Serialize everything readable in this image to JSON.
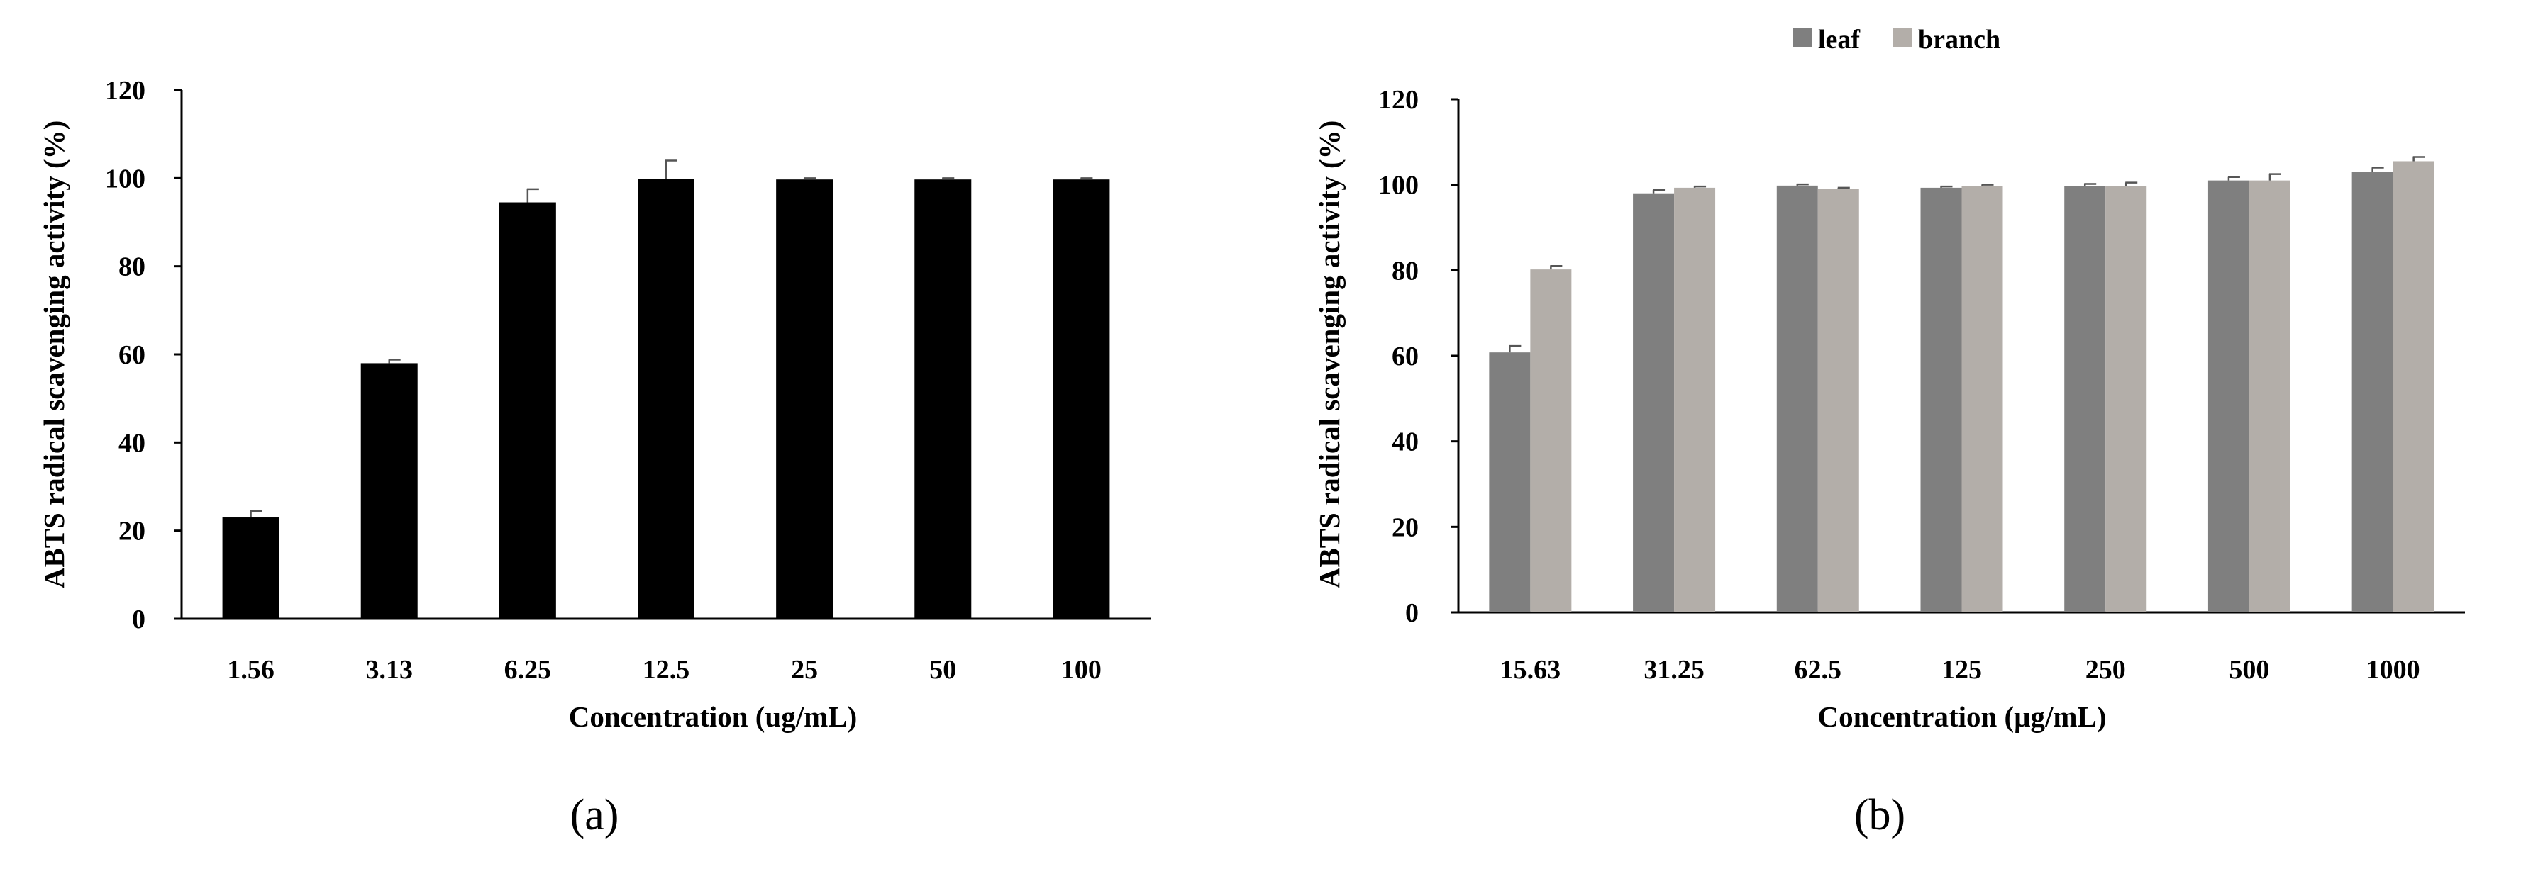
{
  "chart_data": [
    {
      "type": "bar",
      "panel_label": "(a)",
      "categories": [
        "1.56",
        "3.13",
        "6.25",
        "12.5",
        "25",
        "50",
        "100"
      ],
      "series": [
        {
          "values": [
            23,
            58,
            94.5,
            99.8,
            99.7,
            99.7,
            99.7
          ],
          "errors": [
            1.5,
            0.8,
            3.0,
            4.2,
            0.3,
            0.3,
            0.3
          ]
        }
      ],
      "xlabel": "Concentration (ug/mL)",
      "ylabel": "ABTS radical scavenging activity (%)",
      "ylim": [
        0,
        120
      ],
      "yticks": [
        "0",
        "20",
        "40",
        "60",
        "80",
        "100",
        "120"
      ],
      "grid": false,
      "legend": "none",
      "colors": [
        "#000000"
      ]
    },
    {
      "type": "bar",
      "panel_label": "(b)",
      "categories": [
        "15.63",
        "31.25",
        "62.5",
        "125",
        "250",
        "500",
        "1000"
      ],
      "series": [
        {
          "name": "leaf",
          "values": [
            60.8,
            98.0,
            99.8,
            99.3,
            99.7,
            101.0,
            103.0
          ],
          "errors": [
            1.5,
            0.8,
            0.3,
            0.3,
            0.5,
            0.8,
            1.0
          ]
        },
        {
          "name": "branch",
          "values": [
            80.2,
            99.3,
            99.0,
            99.7,
            99.7,
            101.0,
            105.5
          ],
          "errors": [
            0.8,
            0.3,
            0.3,
            0.3,
            0.8,
            1.5,
            1.0
          ]
        }
      ],
      "xlabel": "Concentration (μg/mL)",
      "ylabel": "ABTS radical scavenging activity (%)",
      "ylim": [
        0,
        120
      ],
      "yticks": [
        "0",
        "20",
        "40",
        "60",
        "80",
        "100",
        "120"
      ],
      "grid": false,
      "legend": "top-center",
      "colors": [
        "#7f7f7f",
        "#b3aea9"
      ]
    }
  ]
}
